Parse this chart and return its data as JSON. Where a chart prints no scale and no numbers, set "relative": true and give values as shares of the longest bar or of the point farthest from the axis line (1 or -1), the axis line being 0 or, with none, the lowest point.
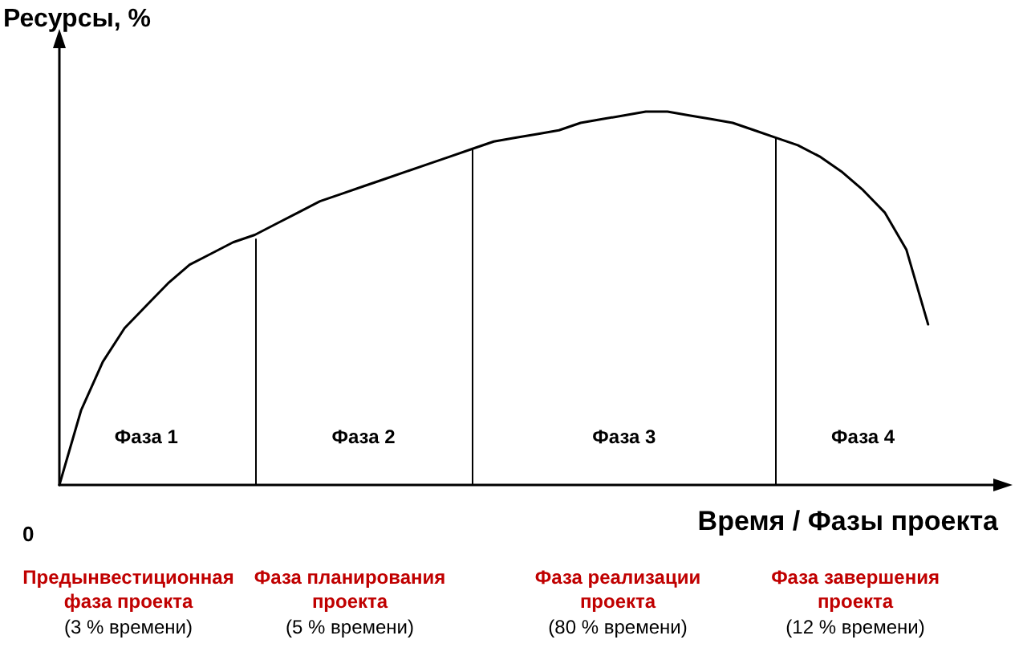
{
  "chart_data": {
    "type": "line",
    "relative": true,
    "xlabel": "Время / Фазы проекта",
    "ylabel": "Ресурсы, %",
    "categories": [
      null,
      null,
      null,
      null,
      null,
      null,
      null,
      null,
      null,
      null,
      null,
      null,
      null,
      null,
      null,
      null,
      null,
      null,
      null,
      null,
      null,
      null,
      null,
      null,
      null,
      null,
      null,
      null,
      null,
      null,
      null,
      null,
      null,
      null,
      null,
      null,
      null,
      null,
      null,
      null,
      null,
      null,
      null,
      null
    ],
    "values": [
      0,
      0.2,
      0.33,
      0.42,
      0.48,
      0.54,
      0.59,
      0.62,
      0.65,
      0.67,
      0.7,
      0.73,
      0.76,
      0.78,
      0.8,
      0.82,
      0.84,
      0.86,
      0.88,
      0.9,
      0.92,
      0.93,
      0.94,
      0.95,
      0.97,
      0.98,
      0.99,
      1,
      1,
      0.99,
      0.98,
      0.97,
      0.95,
      0.93,
      0.91,
      0.88,
      0.84,
      0.79,
      0.73,
      0.63,
      0.43,
      null,
      null,
      null
    ],
    "color": "#000000",
    "marker": "none",
    "line_style": "solid",
    "grid": false,
    "annotations": [
      "Фаза 1",
      "Фаза 2",
      "Фаза 3",
      "Фаза 4",
      "0",
      "Предынвестиционная фаза проекта",
      "(3 % времени)",
      "Фаза планирования проекта",
      "(5 % времени)",
      "Фаза реализации проекта",
      "(80 % времени)",
      "Фаза завершения проекта",
      "(12 % времени)"
    ]
  }
}
